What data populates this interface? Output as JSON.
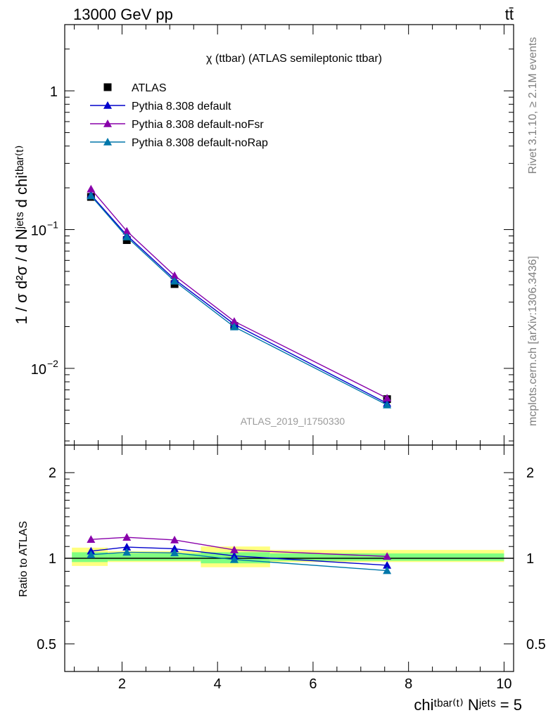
{
  "header": {
    "energy_label": "13000 GeV pp",
    "process_label": "tt̄"
  },
  "side_labels": {
    "rivet": "Rivet 3.1.10, ≥ 2.1M events",
    "mcplots": "mcplots.cern.ch [arXiv:1306.3436]"
  },
  "colors": {
    "ATLAS": "#000000",
    "default": "#0000cc",
    "noFsr": "#8800aa",
    "noRap": "#0077aa",
    "band_outer": "#ffff80",
    "band_inner": "#80ff80"
  },
  "chart_data": [
    {
      "type": "line",
      "title": "χ (ttbar) (ATLAS semileptonic ttbar)",
      "watermark": "ATLAS_2019_I1750330",
      "ylabel": "1 / σ d²σ / d Nʲᵉᵗˢ d chiᵗᵇᵃʳ⁽ᵗ⁾",
      "yscale": "log",
      "ylim": [
        0.0028,
        3.0
      ],
      "xlim": [
        0.8,
        10.2
      ],
      "yticks": [
        {
          "value": 1,
          "label": "1"
        },
        {
          "value": 0.1,
          "label": "10",
          "exp": "−1"
        },
        {
          "value": 0.01,
          "label": "10",
          "exp": "−2"
        }
      ],
      "legend_position": "top-left",
      "x": [
        1.35,
        2.1,
        3.1,
        4.35,
        7.55
      ],
      "series": [
        {
          "name": "ATLAS",
          "key": "ATLAS",
          "marker": "square",
          "line": false,
          "values": [
            0.172,
            0.084,
            0.0405,
            0.0202,
            0.006
          ]
        },
        {
          "name": "Pythia 8.308 default",
          "key": "default",
          "marker": "triangle",
          "line": true,
          "values": [
            0.178,
            0.091,
            0.0438,
            0.0208,
            0.0056
          ]
        },
        {
          "name": "Pythia 8.308 default-noFsr",
          "key": "noFsr",
          "marker": "triangle",
          "line": true,
          "values": [
            0.196,
            0.0975,
            0.0466,
            0.0218,
            0.0061
          ]
        },
        {
          "name": "Pythia 8.308 default-noRap",
          "key": "noRap",
          "marker": "triangle",
          "line": true,
          "values": [
            0.175,
            0.0885,
            0.0425,
            0.0199,
            0.00545
          ]
        }
      ]
    },
    {
      "type": "line",
      "ylabel": "Ratio to ATLAS",
      "xlabel": "chiᵗᵇᵃʳ⁽ᵗ⁾ Nʲᵉᵗˢ = 5",
      "yscale": "log",
      "ylim": [
        0.4,
        2.5
      ],
      "xlim": [
        0.8,
        10.2
      ],
      "xticks": [
        2,
        4,
        6,
        8,
        10
      ],
      "yticks": [
        {
          "value": 2,
          "label": "2"
        },
        {
          "value": 1,
          "label": "1"
        },
        {
          "value": 0.5,
          "label": "0.5"
        }
      ],
      "bins": [
        {
          "xlo": 0.95,
          "xhi": 1.7,
          "outer": [
            0.94,
            1.09
          ],
          "inner": [
            0.97,
            1.05
          ]
        },
        {
          "xlo": 1.7,
          "xhi": 3.65,
          "outer": [
            0.97,
            1.06
          ],
          "inner": [
            0.98,
            1.04
          ]
        },
        {
          "xlo": 3.65,
          "xhi": 5.1,
          "outer": [
            0.93,
            1.1
          ],
          "inner": [
            0.96,
            1.05
          ]
        },
        {
          "xlo": 5.1,
          "xhi": 10.0,
          "outer": [
            0.97,
            1.07
          ],
          "inner": [
            0.98,
            1.04
          ]
        }
      ],
      "x": [
        1.35,
        2.1,
        3.1,
        4.35,
        7.55
      ],
      "series": [
        {
          "name": "Pythia 8.308 default",
          "key": "default",
          "values": [
            1.06,
            1.095,
            1.08,
            1.02,
            0.945
          ]
        },
        {
          "name": "Pythia 8.308 default-noFsr",
          "key": "noFsr",
          "values": [
            1.165,
            1.185,
            1.16,
            1.07,
            1.015
          ]
        },
        {
          "name": "Pythia 8.308 default-noRap",
          "key": "noRap",
          "values": [
            1.03,
            1.05,
            1.045,
            0.99,
            0.905
          ]
        }
      ]
    }
  ]
}
